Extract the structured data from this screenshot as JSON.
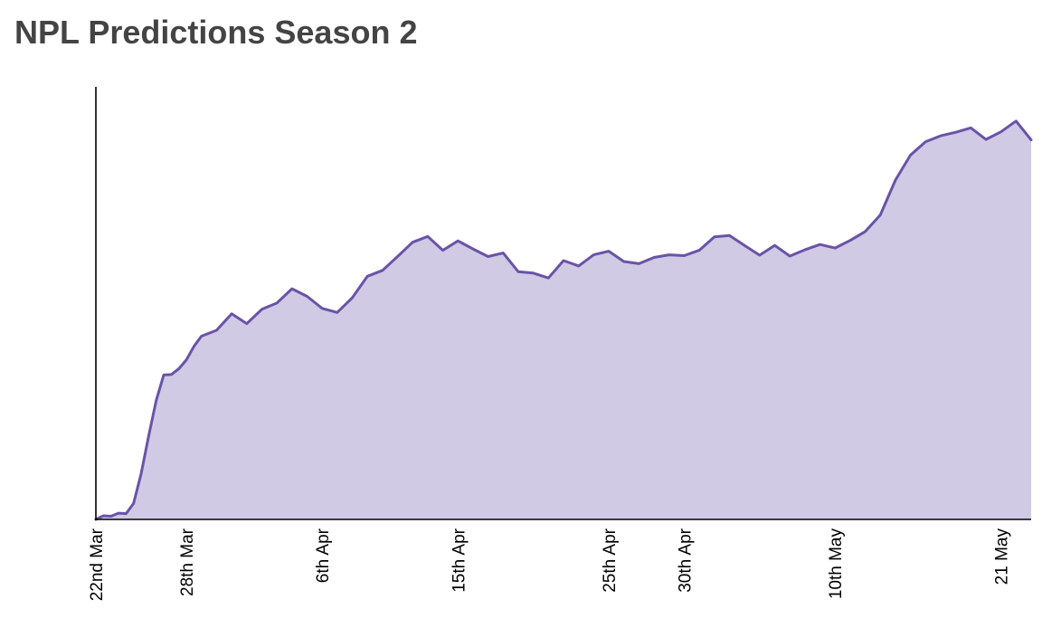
{
  "title": "NPL Predictions Season 2",
  "colors": {
    "line": "#6a53a8",
    "fill": "#d0cae4",
    "axis": "#000000",
    "title": "#444444"
  },
  "chart_data": {
    "type": "area",
    "title": "NPL Predictions Season 2",
    "xlabel": "",
    "ylabel": "",
    "y_axis_labels_shown": false,
    "grid": false,
    "legend": "none",
    "ylim": [
      0,
      100
    ],
    "xlim": [
      "22 Mar",
      "23 May"
    ],
    "x_ticks": [
      {
        "date": "22 Mar",
        "label": "22nd Mar"
      },
      {
        "date": "28 Mar",
        "label": "28th Mar"
      },
      {
        "date": "6 Apr",
        "label": "6th Apr"
      },
      {
        "date": "15 Apr",
        "label": "15th Apr"
      },
      {
        "date": "25 Apr",
        "label": "25th Apr"
      },
      {
        "date": "30 Apr",
        "label": "30th Apr"
      },
      {
        "date": "10 May",
        "label": "10th May"
      },
      {
        "date": "21 May",
        "label": "21 May"
      }
    ],
    "series": [
      {
        "dates": [
          "22 Mar",
          "22 Mar",
          "23 Mar",
          "23 Mar",
          "24 Mar",
          "24 Mar",
          "25 Mar",
          "25 Mar",
          "26 Mar",
          "26 Mar",
          "27 Mar",
          "27 Mar",
          "28 Mar",
          "28 Mar",
          "29 Mar",
          "30 Mar",
          "31 Mar",
          "1 Apr",
          "2 Apr",
          "3 Apr",
          "4 Apr",
          "5 Apr",
          "6 Apr",
          "7 Apr",
          "8 Apr",
          "9 Apr",
          "10 Apr",
          "11 Apr",
          "12 Apr",
          "13 Apr",
          "14 Apr",
          "15 Apr",
          "16 Apr",
          "17 Apr",
          "18 Apr",
          "19 Apr",
          "20 Apr",
          "21 Apr",
          "22 Apr",
          "23 Apr",
          "24 Apr",
          "25 Apr",
          "26 Apr",
          "27 Apr",
          "28 Apr",
          "29 Apr",
          "30 Apr",
          "1 May",
          "2 May",
          "3 May",
          "4 May",
          "5 May",
          "6 May",
          "7 May",
          "8 May",
          "9 May",
          "10 May",
          "11 May",
          "12 May",
          "13 May",
          "14 May",
          "15 May",
          "16 May",
          "17 May",
          "18 May",
          "19 May",
          "20 May",
          "21 May",
          "22 May",
          "23 May"
        ],
        "values": [
          0,
          0.8,
          0.7,
          1.4,
          1.3,
          3.6,
          10.2,
          18.7,
          26.6,
          32.3,
          32.4,
          33.7,
          35.7,
          38.7,
          41.0,
          42.3,
          46.0,
          43.8,
          47.0,
          48.4,
          51.6,
          49.9,
          47.2,
          46.3,
          49.6,
          54.4,
          55.7,
          58.8,
          62.0,
          63.3,
          60.2,
          62.3,
          60.5,
          58.8,
          59.6,
          55.4,
          55.1,
          54.0,
          57.9,
          56.7,
          59.2,
          60.0,
          57.7,
          57.2,
          58.6,
          59.2,
          59.0,
          60.2,
          63.2,
          63.5,
          61.3,
          59.1,
          61.3,
          58.9,
          60.3,
          61.5,
          60.7,
          62.4,
          64.4,
          68.1,
          75.9,
          81.5,
          84.5,
          85.8,
          86.6,
          87.6,
          85.0,
          86.7,
          89.1,
          84.9
        ]
      }
    ]
  }
}
